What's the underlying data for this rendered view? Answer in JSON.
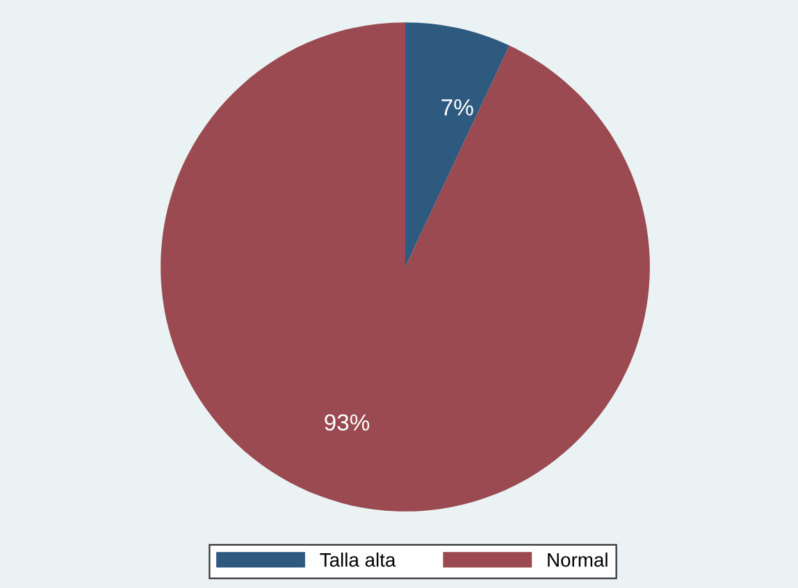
{
  "chart_data": {
    "type": "pie",
    "categories": [
      "Talla alta",
      "Normal"
    ],
    "values": [
      7,
      93
    ],
    "colors": [
      "#2e5a80",
      "#9a4a50"
    ],
    "value_labels": [
      "7%",
      "93%"
    ],
    "legend": "bottom"
  }
}
